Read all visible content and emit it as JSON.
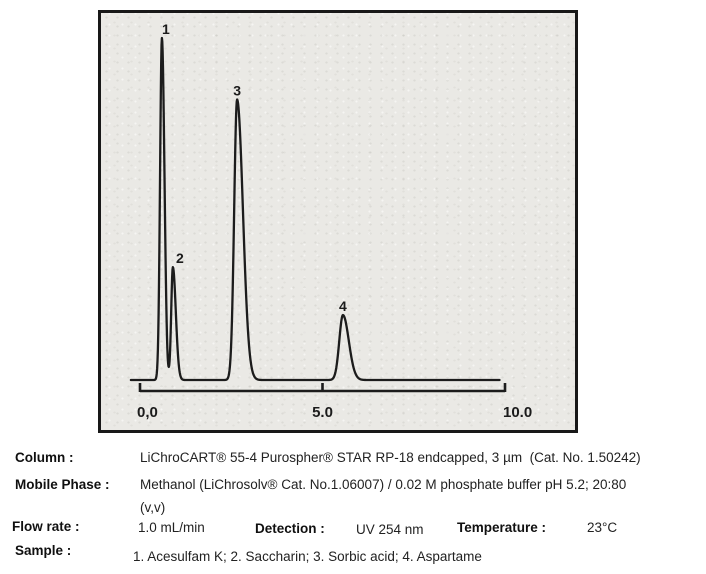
{
  "chart_data": {
    "type": "line",
    "description": "HPLC chromatogram: detector signal vs retention time (min)",
    "title": "",
    "xlabel": "",
    "ylabel": "",
    "xlim": [
      -0.25,
      10.2
    ],
    "grid": false,
    "legend": false,
    "x_ticks": [
      {
        "value": 0,
        "label": "0,0"
      },
      {
        "value": 5,
        "label": "5.0"
      },
      {
        "value": 10,
        "label": "10.0"
      }
    ],
    "trace_start_min": -0.25,
    "trace_end_min": 9.85,
    "peaks": [
      {
        "label": "1",
        "compound": "Acesulfam K",
        "retention_min": 0.6,
        "rel_height": 100,
        "sigma_min": 0.05,
        "tail": 1.4,
        "label_dx": 4
      },
      {
        "label": "2",
        "compound": "Saccharin",
        "retention_min": 0.9,
        "rel_height": 33,
        "sigma_min": 0.045,
        "tail": 1.8,
        "label_dx": 7
      },
      {
        "label": "3",
        "compound": "Sorbic acid",
        "retention_min": 2.66,
        "rel_height": 82,
        "sigma_min": 0.08,
        "tail": 2.0,
        "label_dx": 0
      },
      {
        "label": "4",
        "compound": "Aspartame",
        "retention_min": 5.56,
        "rel_height": 19,
        "sigma_min": 0.1,
        "tail": 1.6,
        "label_dx": 0
      },
      {
        "label": "",
        "compound": "",
        "retention_min": 0.75,
        "rel_height": -1.2,
        "sigma_min": 0.025,
        "tail": 1.0,
        "label_dx": 0
      }
    ],
    "colors": {
      "trace": "#1c1c1c",
      "axis": "#1c1c1c",
      "figure_background": "#eae9e5"
    }
  },
  "specs": {
    "column": {
      "label": "Column :",
      "value": "LiChroCART® 55-4 Purospher® STAR RP-18 endcapped, 3 µm  (Cat. No. 1.50242)"
    },
    "mobile_phase": {
      "label": "Mobile Phase :",
      "value_line1": "Methanol (LiChrosolv® Cat. No.1.06007) / 0.02 M phosphate buffer pH 5.2; 20:80",
      "value_line2": "(v,v)"
    },
    "flow_rate": {
      "label": "Flow rate :",
      "value": "1.0 mL/min"
    },
    "detection": {
      "label": "Detection :",
      "value": "UV 254 nm"
    },
    "temperature": {
      "label": "Temperature :",
      "value": "23°C"
    },
    "sample": {
      "label": "Sample :",
      "value": "1. Acesulfam K; 2. Saccharin; 3. Sorbic acid; 4. Aspartame"
    }
  }
}
